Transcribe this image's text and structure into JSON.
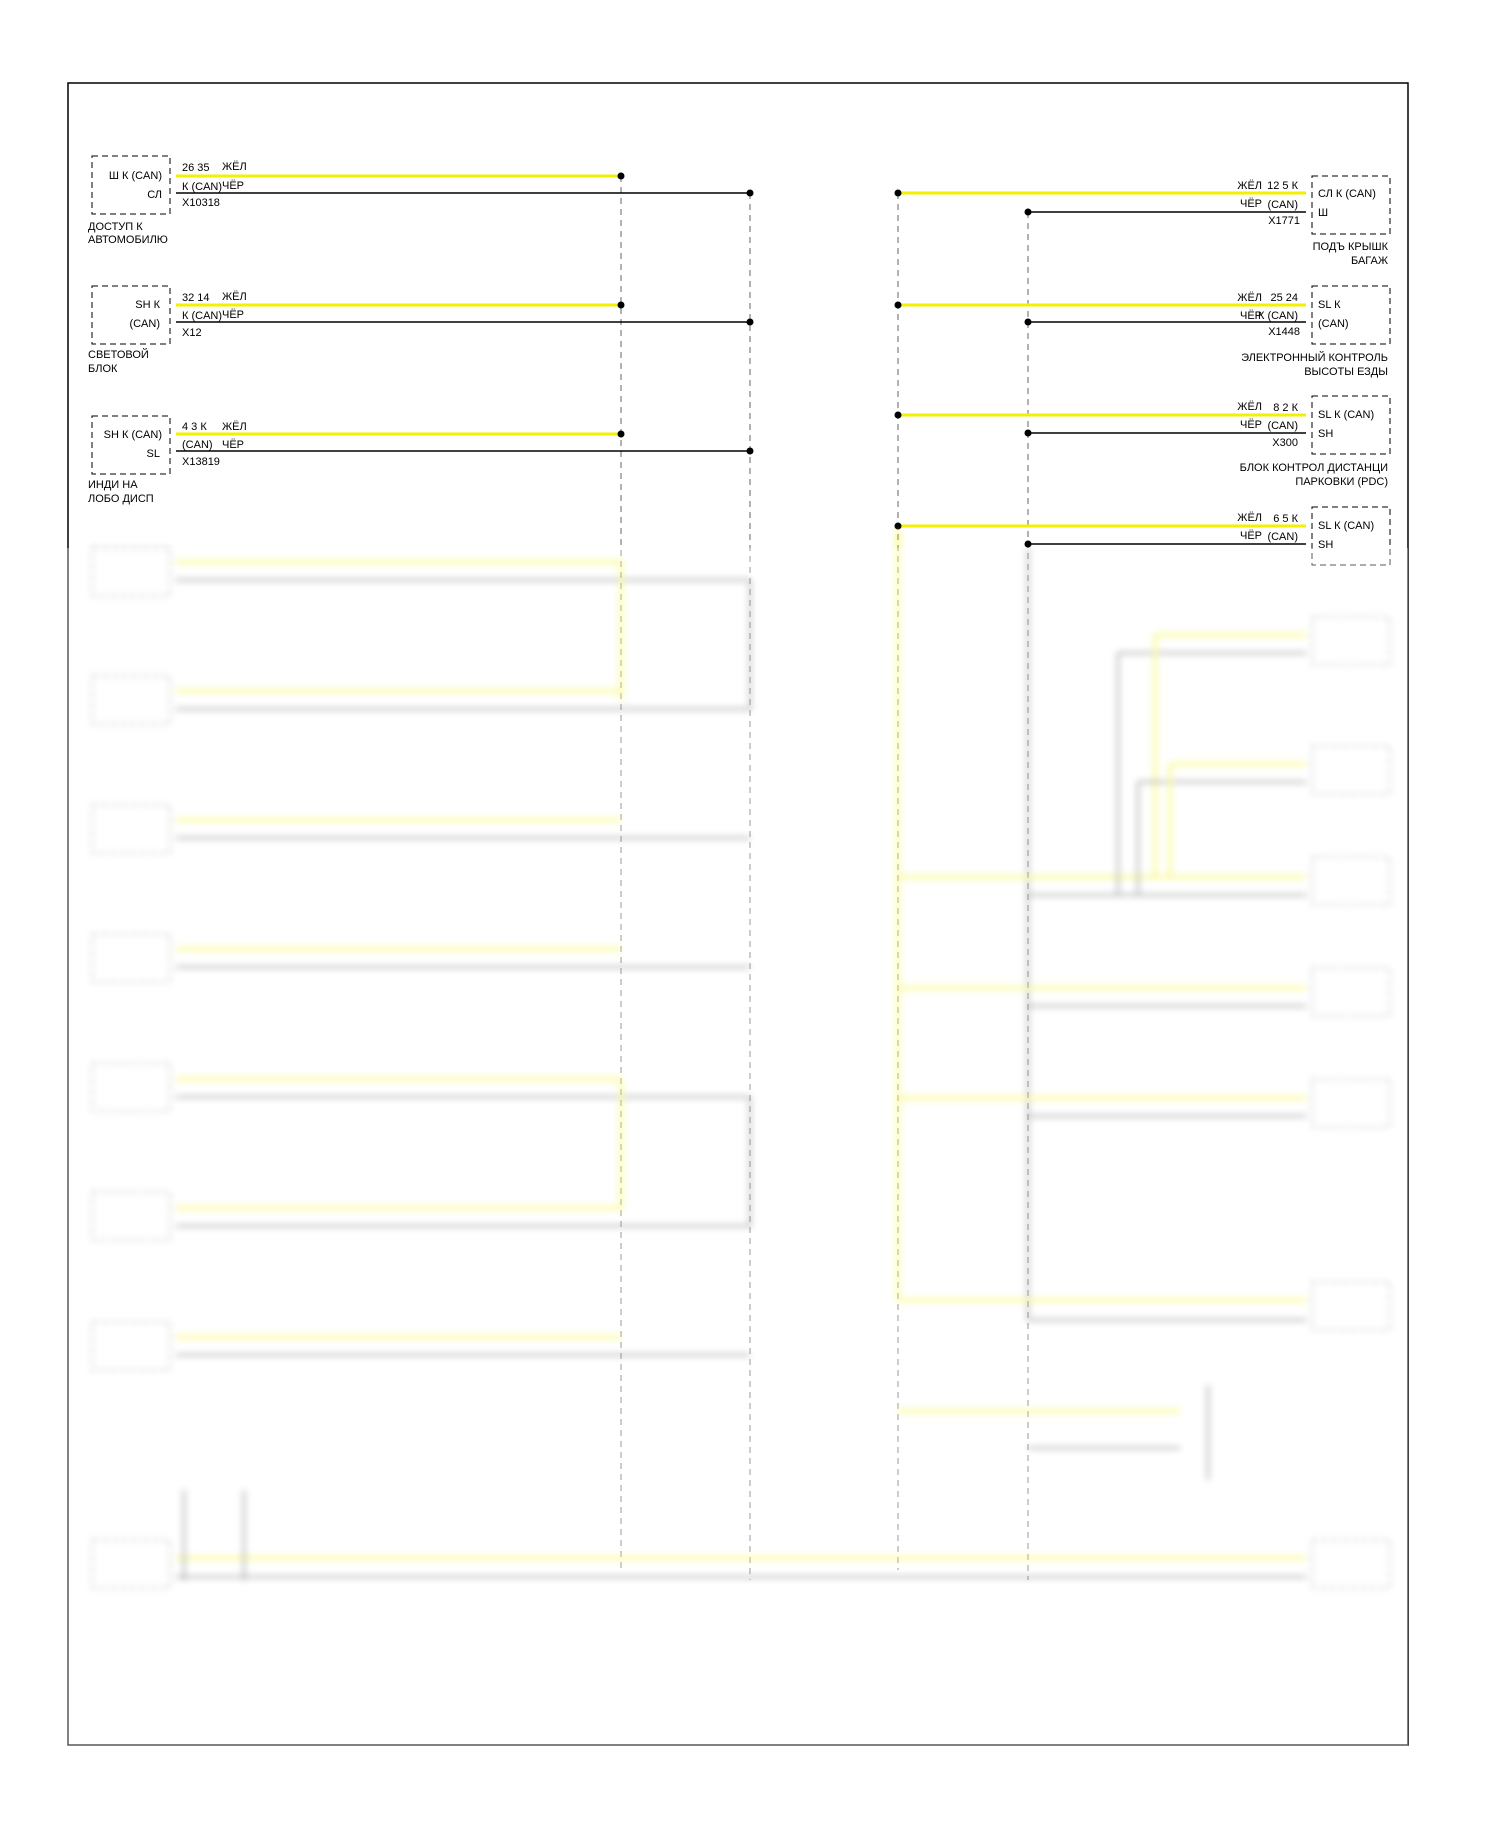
{
  "colors": {
    "yellow": "#f2f200",
    "black": "#000000",
    "frame": "#000000"
  },
  "wire_colors": {
    "yellow": "ЖЁЛ",
    "black": "ЧЁР"
  },
  "left_modules": [
    {
      "line1": "Ш К (CAN)",
      "line2": "СЛ",
      "pins_top": "26 35",
      "pins_bottom": "К (CAN)",
      "connector": "X10318",
      "name1": "ДОСТУП К",
      "name2": "АВТОМОБИЛЮ"
    },
    {
      "line1": "SH К",
      "line2": "(CAN)",
      "pins_top": "32 14",
      "pins_bottom": "К (CAN)",
      "connector": "X12",
      "name1": "СВЕТОВОЙ",
      "name2": "БЛОК"
    },
    {
      "line1": "SH К (CAN)",
      "line2": "SL",
      "pins_top": "4 3 К",
      "pins_bottom": "(CAN)",
      "connector": "X13819",
      "name1": "ИНДИ НА",
      "name2": "ЛОБО ДИСП"
    }
  ],
  "right_modules": [
    {
      "line1": "СЛ К (CAN)",
      "line2": "Ш",
      "pins_top": "12 5 К",
      "pins_bottom": "(CAN)",
      "connector": "X1771",
      "name1": "ПОДЪ КРЫШК",
      "name2": "БАГАЖ"
    },
    {
      "line1": "SL К",
      "line2": "(CAN)",
      "pins_top": "25 24",
      "pins_bottom": "К (CAN)",
      "connector": "X1448",
      "name1": "ЭЛЕКТРОННЫЙ КОНТРОЛЬ",
      "name2": "ВЫСОТЫ ЕЗДЫ"
    },
    {
      "line1": "SL К (CAN)",
      "line2": "SH",
      "pins_top": "8 2 К",
      "pins_bottom": "(CAN)",
      "connector": "X300",
      "name1": "БЛОК КОНТРОЛ ДИСТАНЦИ",
      "name2": "ПАРКОВКИ (PDC)"
    },
    {
      "line1": "SL К (CAN)",
      "line2": "SH",
      "pins_top": "6 5 К",
      "pins_bottom": "(CAN)"
    }
  ]
}
